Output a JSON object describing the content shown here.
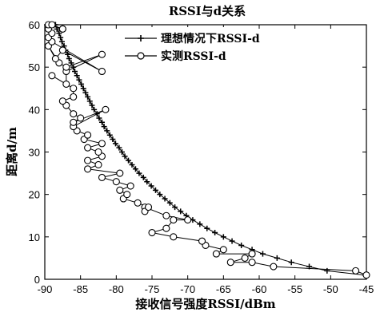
{
  "chart_data": {
    "type": "line",
    "title": "RSSI与d关系",
    "xlabel": "接收信号强度RSSI/dBm",
    "ylabel": "距离d/m",
    "xlim": [
      -90,
      -45
    ],
    "ylim": [
      0,
      60
    ],
    "xticks": [
      -90,
      -85,
      -80,
      -75,
      -70,
      -65,
      -60,
      -55,
      -50,
      -45
    ],
    "yticks": [
      0,
      10,
      20,
      30,
      40,
      50,
      60
    ],
    "grid": false,
    "legend_position": "top-right",
    "series": [
      {
        "name": "理想情况下RSSI-d",
        "marker": "plus",
        "color": "#000000",
        "x": [
          -45.2,
          -50.5,
          -53.0,
          -55.5,
          -57.5,
          -59.5,
          -61.0,
          -62.5,
          -63.8,
          -65.0,
          -66.2,
          -67.3,
          -68.3,
          -69.3,
          -70.2,
          -71.0,
          -71.8,
          -72.5,
          -73.2,
          -73.9,
          -74.5,
          -75.1,
          -75.7,
          -76.2,
          -76.8,
          -77.3,
          -77.8,
          -78.3,
          -78.8,
          -79.2,
          -79.6,
          -80.1,
          -80.5,
          -80.9,
          -81.3,
          -81.7,
          -82.0,
          -82.4,
          -82.7,
          -83.1,
          -83.4,
          -83.7,
          -84.0,
          -84.3,
          -84.6,
          -84.9,
          -85.2,
          -85.5,
          -85.8,
          -86.0,
          -86.3,
          -86.6,
          -86.8,
          -87.1,
          -87.3,
          -87.6,
          -87.8,
          -88.0,
          -88.3,
          -88.5,
          -88.7,
          -89.0,
          -89.3,
          -89.5,
          -89.7
        ],
        "y": [
          1,
          2,
          3,
          4,
          5,
          6,
          7,
          8,
          9,
          10,
          11,
          12,
          13,
          14,
          15,
          16,
          17,
          18,
          19,
          20,
          21,
          22,
          23,
          24,
          25,
          26,
          27,
          28,
          29,
          30,
          31,
          32,
          33,
          34,
          35,
          36,
          37,
          38,
          39,
          40,
          41,
          42,
          43,
          44,
          45,
          46,
          47,
          48,
          49,
          50,
          51,
          52,
          53,
          54,
          55,
          56,
          57,
          58,
          59,
          60,
          60,
          60,
          60,
          60,
          60
        ]
      },
      {
        "name": "实测RSSI-d",
        "marker": "circle",
        "color": "#000000",
        "x": [
          -45.0,
          -46.5,
          -58.0,
          -61.0,
          -64.0,
          -62.0,
          -61.0,
          -66.0,
          -65.0,
          -67.5,
          -68.0,
          -72.0,
          -75.0,
          -73.0,
          -72.0,
          -70.0,
          -73.0,
          -76.0,
          -76.0,
          -75.5,
          -77.0,
          -79.0,
          -78.5,
          -79.5,
          -78.0,
          -80.0,
          -82.0,
          -79.5,
          -84.0,
          -82.5,
          -84.0,
          -82.0,
          -82.5,
          -84.0,
          -82.0,
          -84.5,
          -84.0,
          -85.5,
          -86.0,
          -81.5,
          -86.0,
          -85.0,
          -86.0,
          -87.0,
          -87.5,
          -86.0,
          -86.0,
          -89.0,
          -87.0,
          -87.0,
          -82.0,
          -87.0,
          -88.0,
          -89.5,
          -88.5,
          -87.5,
          -82.0,
          -89.0,
          -89.5,
          -89.0,
          -89.5,
          -89.5,
          -87.5,
          -87.5,
          -89.0
        ],
        "y": [
          1,
          2,
          3,
          4,
          4,
          5,
          6,
          6,
          7,
          8,
          9,
          10,
          11,
          12,
          14,
          14,
          15,
          17,
          16,
          17,
          18,
          19,
          20,
          21,
          22,
          23,
          24,
          25,
          26,
          27,
          28,
          29,
          30,
          31,
          32,
          33,
          34,
          35,
          36,
          40,
          37,
          38,
          39,
          41,
          42,
          43,
          45,
          48,
          46,
          49,
          53,
          50,
          51,
          55,
          52,
          54,
          49,
          56,
          57,
          58,
          59,
          60,
          59,
          59,
          60
        ]
      }
    ]
  }
}
